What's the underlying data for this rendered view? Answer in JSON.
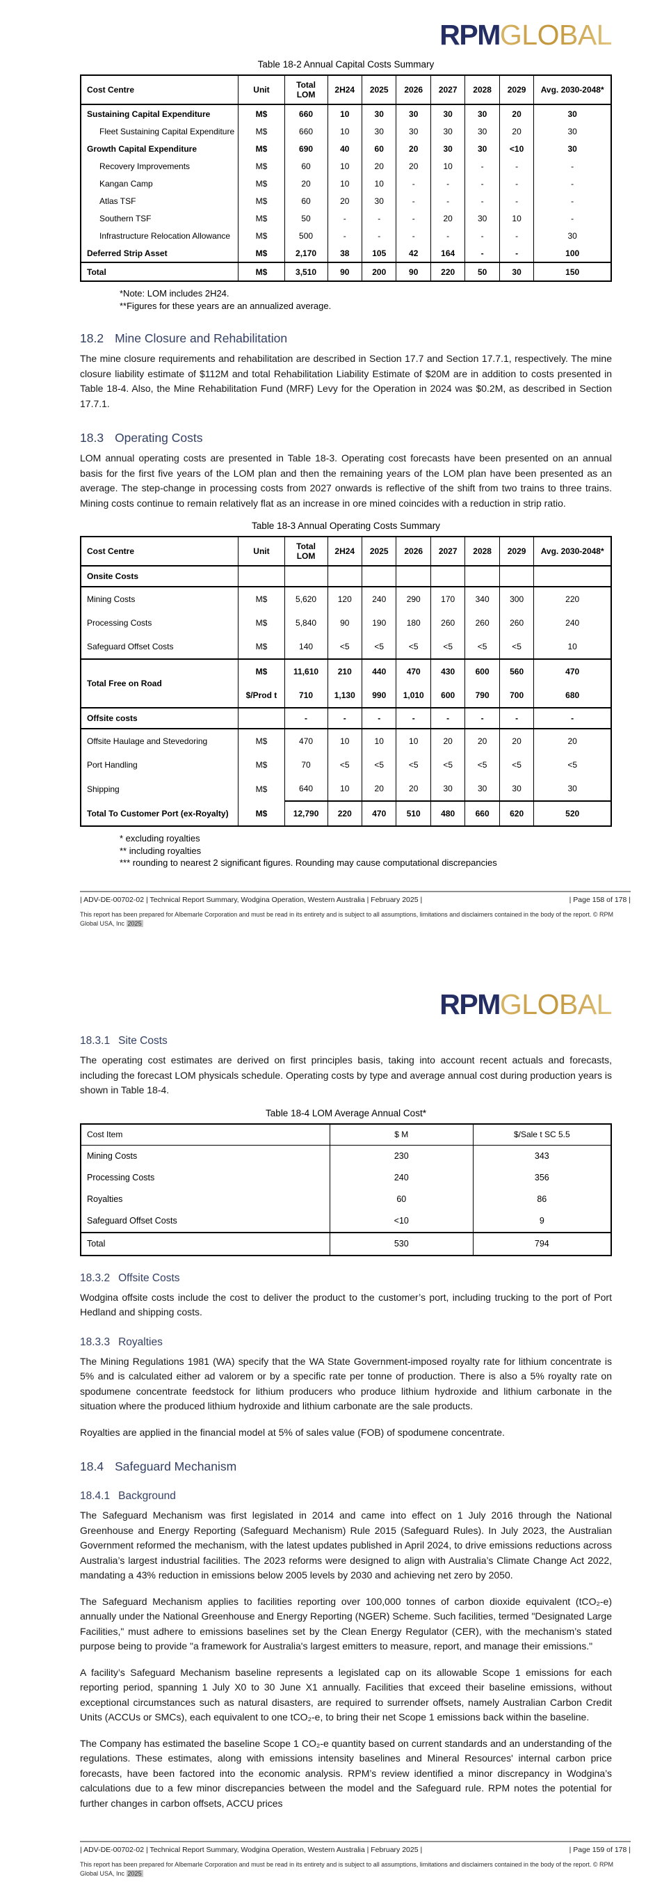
{
  "logo": {
    "rpm": "RPM",
    "global": "GLOBAL"
  },
  "colors": {
    "heading_blue": "#334063",
    "logo_navy": "#252e62",
    "logo_gold": "#c19539",
    "highlight_gray": "#c9c9c9"
  },
  "footer": {
    "doc_info": "|  ADV-DE-00702-02  |  Technical Report Summary, Wodgina Operation, Western Australia  |  February 2025  |",
    "disclaimer": "This report has been prepared for Albemarle Corporation and must be read in its entirety and is subject to all assumptions, limitations and disclaimers contained in the body of the report. © RPM Global USA, Inc",
    "disclaimer_year": "2025"
  },
  "page1": {
    "page_info": "|  Page 158 of 178 |",
    "capital_table": {
      "type": "table",
      "title": "Table 18-2 Annual Capital Costs Summary",
      "headers": [
        "Cost Centre",
        "Unit",
        "Total LOM",
        "2H24",
        "2025",
        "2026",
        "2027",
        "2028",
        "2029",
        "Avg. 2030-2048*"
      ],
      "rows": [
        {
          "style": "bold",
          "cells": [
            "Sustaining Capital Expenditure",
            "M$",
            "660",
            "10",
            "30",
            "30",
            "30",
            "30",
            "20",
            "30"
          ]
        },
        {
          "style": "indent",
          "cells": [
            "Fleet Sustaining Capital Expenditure",
            "M$",
            "660",
            "10",
            "30",
            "30",
            "30",
            "30",
            "20",
            "30"
          ]
        },
        {
          "style": "bold",
          "cells": [
            "Growth Capital Expenditure",
            "M$",
            "690",
            "40",
            "60",
            "20",
            "30",
            "30",
            "<10",
            "30"
          ]
        },
        {
          "style": "indent",
          "cells": [
            "Recovery Improvements",
            "M$",
            "60",
            "10",
            "20",
            "20",
            "10",
            "-",
            "-",
            "-"
          ]
        },
        {
          "style": "indent",
          "cells": [
            "Kangan Camp",
            "M$",
            "20",
            "10",
            "10",
            "-",
            "-",
            "-",
            "-",
            "-"
          ]
        },
        {
          "style": "indent",
          "cells": [
            "Atlas TSF",
            "M$",
            "60",
            "20",
            "30",
            "-",
            "-",
            "-",
            "-",
            "-"
          ]
        },
        {
          "style": "indent",
          "cells": [
            "Southern TSF",
            "M$",
            "50",
            "-",
            "-",
            "-",
            "20",
            "30",
            "10",
            "-"
          ]
        },
        {
          "style": "indent",
          "cells": [
            "Infrastructure Relocation Allowance",
            "M$",
            "500",
            "-",
            "-",
            "-",
            "-",
            "-",
            "-",
            "30"
          ]
        },
        {
          "style": "bold",
          "cells": [
            "Deferred Strip Asset",
            "M$",
            "2,170",
            "38",
            "105",
            "42",
            "164",
            "-",
            "-",
            "100"
          ]
        },
        {
          "style": "bold sep-top",
          "cells": [
            "Total",
            "M$",
            "3,510",
            "90",
            "200",
            "90",
            "220",
            "50",
            "30",
            "150"
          ]
        }
      ],
      "notes": [
        "*Note: LOM includes 2H24.",
        "**Figures for these years are an annualized average."
      ]
    },
    "section_mine_closure": {
      "number": "18.2",
      "title": "Mine Closure and Rehabilitation",
      "body": "The mine closure requirements and rehabilitation are described in Section 17.7 and Section 17.7.1, respectively. The mine closure liability estimate of $112M and total Rehabilitation Liability Estimate of $20M are in addition to costs presented in Table 18-4. Also, the Mine Rehabilitation Fund (MRF) Levy for the Operation in 2024 was $0.2M, as described in Section 17.7.1."
    },
    "section_operating_costs": {
      "number": "18.3",
      "title": "Operating Costs",
      "body": "LOM annual operating costs are presented in Table 18-3. Operating cost forecasts have been presented on an annual basis for the first five years of the LOM plan and then the remaining years of the LOM plan have been presented as an average. The step-change in processing costs from 2027 onwards is reflective of the shift from two trains to three trains. Mining costs continue to remain relatively flat as an increase in ore mined coincides with a reduction in strip ratio."
    },
    "operating_table": {
      "type": "table",
      "title": "Table 18-3 Annual Operating Costs Summary",
      "headers": [
        "Cost Centre",
        "Unit",
        "Total LOM",
        "2H24",
        "2025",
        "2026",
        "2027",
        "2028",
        "2029",
        "Avg. 2030-2048*"
      ],
      "rows": [
        {
          "style": "bold section sep-bottom",
          "cells": [
            "Onsite Costs",
            "",
            "",
            "",
            "",
            "",
            "",
            "",
            "",
            ""
          ]
        },
        {
          "style": "",
          "cells": [
            "Mining Costs",
            "M$",
            "5,620",
            "120",
            "240",
            "290",
            "170",
            "340",
            "300",
            "220"
          ]
        },
        {
          "style": "",
          "cells": [
            "Processing Costs",
            "M$",
            "5,840",
            "90",
            "190",
            "180",
            "260",
            "260",
            "260",
            "240"
          ]
        },
        {
          "style": "",
          "cells": [
            "Safeguard Offset Costs",
            "M$",
            "140",
            "<5",
            "<5",
            "<5",
            "<5",
            "<5",
            "<5",
            "10"
          ]
        },
        {
          "style": "bold sep-top",
          "rowspan": 2,
          "cells": [
            "Total Free on Road",
            "M$",
            "11,610",
            "210",
            "440",
            "470",
            "430",
            "600",
            "560",
            "470"
          ]
        },
        {
          "style": "bold",
          "cells": [
            null,
            "$/Prod t",
            "710",
            "1,130",
            "990",
            "1,010",
            "600",
            "790",
            "700",
            "680"
          ]
        },
        {
          "style": "bold section sep-top sep-bottom",
          "cells": [
            "Offsite costs",
            "",
            "-",
            "-",
            "-",
            "-",
            "-",
            "-",
            "-",
            "-"
          ]
        },
        {
          "style": "",
          "cells": [
            "Offsite Haulage and Stevedoring",
            "M$",
            "470",
            "10",
            "10",
            "10",
            "20",
            "20",
            "20",
            "20"
          ]
        },
        {
          "style": "",
          "cells": [
            "Port Handling",
            "M$",
            "70",
            "<5",
            "<5",
            "<5",
            "<5",
            "<5",
            "<5",
            "<5"
          ]
        },
        {
          "style": "",
          "cells": [
            "Shipping",
            "M$",
            "640",
            "10",
            "20",
            "20",
            "30",
            "30",
            "30",
            "30"
          ]
        },
        {
          "style": "bold sep-top-vals",
          "cells": [
            "Total To Customer Port (ex-Royalty)",
            "M$",
            "12,790",
            "220",
            "470",
            "510",
            "480",
            "660",
            "620",
            "520"
          ]
        }
      ],
      "notes": [
        "* excluding royalties",
        "** including royalties",
        "*** rounding to nearest 2 significant figures. Rounding may cause computational discrepancies"
      ]
    }
  },
  "page2": {
    "page_info": "|  Page 159 of 178 |",
    "section_site_costs": {
      "number": "18.3.1",
      "title": "Site Costs",
      "body": "The operating cost estimates are derived on first principles basis, taking into account recent actuals and forecasts, including the forecast LOM physicals schedule. Operating costs by type and average annual cost during production years is shown in Table 18-4."
    },
    "annual_cost_table": {
      "type": "table",
      "title": "Table 18-4 LOM Average Annual Cost*",
      "headers": [
        "Cost Item",
        "$ M",
        "$/Sale t SC 5.5"
      ],
      "rows": [
        {
          "style": "",
          "cells": [
            "Mining Costs",
            "230",
            "343"
          ]
        },
        {
          "style": "",
          "cells": [
            "Processing Costs",
            "240",
            "356"
          ]
        },
        {
          "style": "",
          "cells": [
            "Royalties",
            "60",
            "86"
          ]
        },
        {
          "style": "",
          "cells": [
            "Safeguard Offset Costs",
            "<10",
            "9"
          ]
        },
        {
          "style": "sep-top",
          "cells": [
            "Total",
            "530",
            "794"
          ]
        }
      ]
    },
    "section_offsite_costs": {
      "number": "18.3.2",
      "title": "Offsite Costs",
      "body": "Wodgina offsite costs include the cost to deliver the product to the customer’s port, including trucking to the port of Port Hedland and shipping costs."
    },
    "section_royalties": {
      "number": "18.3.3",
      "title": "Royalties",
      "body": "The Mining Regulations 1981 (WA) specify that the WA State Government-imposed royalty rate for lithium concentrate is 5% and is calculated either ad valorem or by a specific rate per tonne of production. There is also a 5% royalty rate on spodumene concentrate feedstock for lithium producers who produce lithium hydroxide and lithium carbonate in the situation where the produced lithium hydroxide and lithium carbonate are the sale products.",
      "body2": "Royalties are applied in the financial model at 5% of sales value (FOB) of spodumene concentrate."
    },
    "section_safeguard": {
      "number": "18.4",
      "title": "Safeguard Mechanism"
    },
    "section_background": {
      "number": "18.4.1",
      "title": "Background",
      "paragraphs": [
        "The Safeguard Mechanism was first legislated in 2014 and came into effect on 1 July 2016 through the National Greenhouse and Energy Reporting (Safeguard Mechanism) Rule 2015 (Safeguard Rules). In July 2023, the Australian Government reformed the mechanism, with the latest updates published in April 2024, to drive emissions reductions across Australia’s largest industrial facilities. The 2023 reforms were designed to align with Australia’s Climate Change Act 2022, mandating a 43% reduction in emissions below 2005 levels by 2030 and achieving net zero by 2050.",
        "The Safeguard Mechanism applies to facilities reporting over 100,000 tonnes of carbon dioxide equivalent (tCO₂-e) annually under the National Greenhouse and Energy Reporting (NGER) Scheme. Such facilities, termed \"Designated Large Facilities,\" must adhere to emissions baselines set by the Clean Energy Regulator (CER), with the mechanism’s stated purpose being to provide \"a framework for Australia's largest emitters to measure, report, and manage their emissions.\"",
        "A facility’s Safeguard Mechanism baseline represents a legislated cap on its allowable Scope 1 emissions for each reporting period, spanning 1 July X0 to 30 June X1 annually. Facilities that exceed their baseline emissions, without exceptional circumstances such as natural disasters, are required to surrender offsets, namely Australian Carbon Credit Units (ACCUs or SMCs), each equivalent to one tCO₂-e, to bring their net Scope 1 emissions back within the baseline.",
        "The Company has estimated the baseline Scope 1 CO₂-e quantity based on current standards and an understanding of the regulations. These estimates, along with emissions intensity baselines and Mineral Resources' internal carbon price forecasts, have been factored into the economic analysis. RPM’s review identified a minor discrepancy in Wodgina’s calculations due to a few minor discrepancies between the model and the Safeguard rule. RPM notes the potential for further changes in carbon offsets, ACCU prices"
      ]
    }
  }
}
